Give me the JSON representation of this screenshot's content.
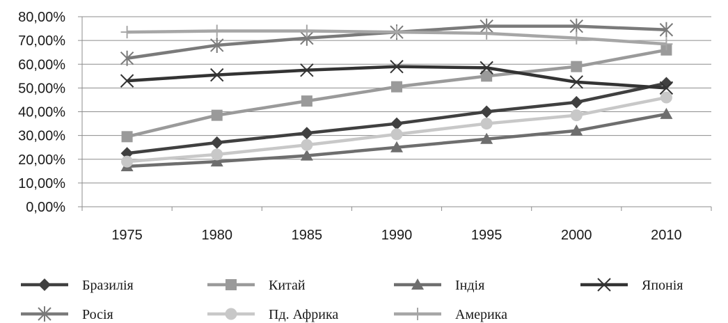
{
  "chart_data": {
    "type": "line",
    "title": "",
    "xlabel": "",
    "ylabel": "",
    "categories": [
      "1975",
      "1980",
      "1985",
      "1990",
      "1995",
      "2000",
      "2010"
    ],
    "ylim": [
      0,
      80
    ],
    "yticks": [
      "0,00%",
      "10,00%",
      "20,00%",
      "30,00%",
      "40,00%",
      "50,00%",
      "60,00%",
      "70,00%",
      "80,00%"
    ],
    "grid": true,
    "legend_position": "bottom",
    "series": [
      {
        "name": "Бразилія",
        "marker": "diamond",
        "color": "#404040",
        "values": [
          22.5,
          27,
          31,
          35,
          40,
          44,
          52
        ]
      },
      {
        "name": "Китай",
        "marker": "square",
        "color": "#9a9a9a",
        "values": [
          29.5,
          38.5,
          44.5,
          50.5,
          55,
          59,
          66
        ]
      },
      {
        "name": "Індія",
        "marker": "triangle",
        "color": "#6e6e6e",
        "values": [
          17,
          19,
          21.5,
          25,
          28.5,
          32,
          39
        ]
      },
      {
        "name": "Японія",
        "marker": "x",
        "color": "#333333",
        "values": [
          53,
          55.5,
          57.5,
          59,
          58.5,
          52.5,
          50
        ]
      },
      {
        "name": "Росія",
        "marker": "star",
        "color": "#7a7a7a",
        "values": [
          62.5,
          68,
          71,
          73.5,
          76,
          76,
          74.5
        ]
      },
      {
        "name": "Пд. Африка",
        "marker": "circle",
        "color": "#c8c8c8",
        "values": [
          19,
          22,
          26,
          30.5,
          35,
          38.5,
          46
        ]
      },
      {
        "name": "Америка",
        "marker": "plus",
        "color": "#a6a6a6",
        "values": [
          73.5,
          74,
          74,
          73.5,
          73,
          71,
          68.5
        ]
      }
    ]
  }
}
